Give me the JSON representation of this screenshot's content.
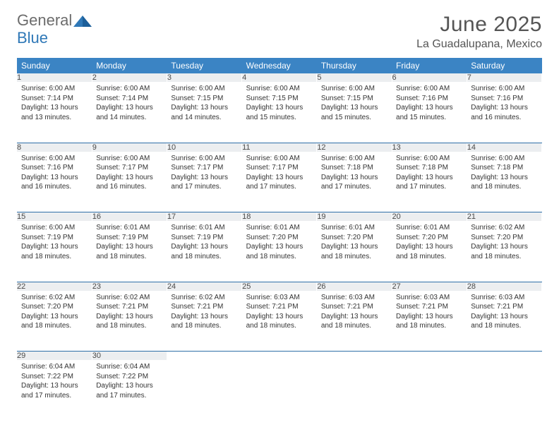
{
  "brand": {
    "word1": "General",
    "word2": "Blue"
  },
  "title": "June 2025",
  "location": "La Guadalupana, Mexico",
  "colors": {
    "header_bg": "#3b84c4",
    "header_text": "#ffffff",
    "daynum_bg": "#eceef0",
    "rule": "#2f6fa8",
    "logo_gray": "#6c6c6c",
    "logo_blue": "#2f78b7",
    "text": "#333333"
  },
  "day_names": [
    "Sunday",
    "Monday",
    "Tuesday",
    "Wednesday",
    "Thursday",
    "Friday",
    "Saturday"
  ],
  "weeks": [
    [
      {
        "n": "1",
        "sr": "6:00 AM",
        "ss": "7:14 PM",
        "dl": "13 hours and 13 minutes."
      },
      {
        "n": "2",
        "sr": "6:00 AM",
        "ss": "7:14 PM",
        "dl": "13 hours and 14 minutes."
      },
      {
        "n": "3",
        "sr": "6:00 AM",
        "ss": "7:15 PM",
        "dl": "13 hours and 14 minutes."
      },
      {
        "n": "4",
        "sr": "6:00 AM",
        "ss": "7:15 PM",
        "dl": "13 hours and 15 minutes."
      },
      {
        "n": "5",
        "sr": "6:00 AM",
        "ss": "7:15 PM",
        "dl": "13 hours and 15 minutes."
      },
      {
        "n": "6",
        "sr": "6:00 AM",
        "ss": "7:16 PM",
        "dl": "13 hours and 15 minutes."
      },
      {
        "n": "7",
        "sr": "6:00 AM",
        "ss": "7:16 PM",
        "dl": "13 hours and 16 minutes."
      }
    ],
    [
      {
        "n": "8",
        "sr": "6:00 AM",
        "ss": "7:16 PM",
        "dl": "13 hours and 16 minutes."
      },
      {
        "n": "9",
        "sr": "6:00 AM",
        "ss": "7:17 PM",
        "dl": "13 hours and 16 minutes."
      },
      {
        "n": "10",
        "sr": "6:00 AM",
        "ss": "7:17 PM",
        "dl": "13 hours and 17 minutes."
      },
      {
        "n": "11",
        "sr": "6:00 AM",
        "ss": "7:17 PM",
        "dl": "13 hours and 17 minutes."
      },
      {
        "n": "12",
        "sr": "6:00 AM",
        "ss": "7:18 PM",
        "dl": "13 hours and 17 minutes."
      },
      {
        "n": "13",
        "sr": "6:00 AM",
        "ss": "7:18 PM",
        "dl": "13 hours and 17 minutes."
      },
      {
        "n": "14",
        "sr": "6:00 AM",
        "ss": "7:18 PM",
        "dl": "13 hours and 18 minutes."
      }
    ],
    [
      {
        "n": "15",
        "sr": "6:00 AM",
        "ss": "7:19 PM",
        "dl": "13 hours and 18 minutes."
      },
      {
        "n": "16",
        "sr": "6:01 AM",
        "ss": "7:19 PM",
        "dl": "13 hours and 18 minutes."
      },
      {
        "n": "17",
        "sr": "6:01 AM",
        "ss": "7:19 PM",
        "dl": "13 hours and 18 minutes."
      },
      {
        "n": "18",
        "sr": "6:01 AM",
        "ss": "7:20 PM",
        "dl": "13 hours and 18 minutes."
      },
      {
        "n": "19",
        "sr": "6:01 AM",
        "ss": "7:20 PM",
        "dl": "13 hours and 18 minutes."
      },
      {
        "n": "20",
        "sr": "6:01 AM",
        "ss": "7:20 PM",
        "dl": "13 hours and 18 minutes."
      },
      {
        "n": "21",
        "sr": "6:02 AM",
        "ss": "7:20 PM",
        "dl": "13 hours and 18 minutes."
      }
    ],
    [
      {
        "n": "22",
        "sr": "6:02 AM",
        "ss": "7:20 PM",
        "dl": "13 hours and 18 minutes."
      },
      {
        "n": "23",
        "sr": "6:02 AM",
        "ss": "7:21 PM",
        "dl": "13 hours and 18 minutes."
      },
      {
        "n": "24",
        "sr": "6:02 AM",
        "ss": "7:21 PM",
        "dl": "13 hours and 18 minutes."
      },
      {
        "n": "25",
        "sr": "6:03 AM",
        "ss": "7:21 PM",
        "dl": "13 hours and 18 minutes."
      },
      {
        "n": "26",
        "sr": "6:03 AM",
        "ss": "7:21 PM",
        "dl": "13 hours and 18 minutes."
      },
      {
        "n": "27",
        "sr": "6:03 AM",
        "ss": "7:21 PM",
        "dl": "13 hours and 18 minutes."
      },
      {
        "n": "28",
        "sr": "6:03 AM",
        "ss": "7:21 PM",
        "dl": "13 hours and 18 minutes."
      }
    ],
    [
      {
        "n": "29",
        "sr": "6:04 AM",
        "ss": "7:22 PM",
        "dl": "13 hours and 17 minutes."
      },
      {
        "n": "30",
        "sr": "6:04 AM",
        "ss": "7:22 PM",
        "dl": "13 hours and 17 minutes."
      },
      null,
      null,
      null,
      null,
      null
    ]
  ],
  "labels": {
    "sunrise": "Sunrise: ",
    "sunset": "Sunset: ",
    "daylight": "Daylight: "
  }
}
